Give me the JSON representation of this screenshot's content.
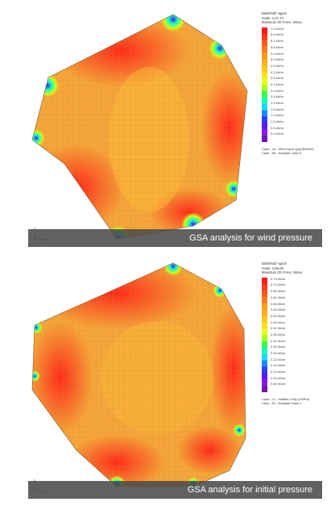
{
  "panels": [
    {
      "caption": "GSA analysis for wind pressure",
      "legend": {
        "title": "Bielsehild *ugsa*",
        "scale": "Scale: 1:07.70",
        "quantity": "Maximum 2D Force, Nmax",
        "ticks": [
          "7.0 kN/m",
          "6.6 kN/m",
          "6.2 kN/m",
          "5.8 kN/m",
          "5.4 kN/m",
          "5.0 kN/m",
          "4.6 kN/m",
          "4.2 kN/m",
          "3.8 kN/m",
          "3.4 kN/m",
          "3.0 kN/m",
          "2.6 kN/m",
          "2.2 kN/m",
          "1.8 kN/m",
          "1.4 kN/m",
          "1.0 kN/m",
          "0.6 kN/m",
          "0.0 kN/m"
        ],
        "case_line1": "Case : L6 : Wind sqcm (pc)(3kN/m2)",
        "case_line2": "Case : A6 : Analysis Case 6"
      }
    },
    {
      "caption": "GSA analysis for initial pressure",
      "legend": {
        "title": "Bielsehild *ugsa*",
        "scale": "Scale: 1:58.06",
        "quantity": "Maximum 2D Force, Nmax",
        "ticks": [
          "0.74 kN/m",
          "0.70 kN/m",
          "0.66 kN/m",
          "0.62 kN/m",
          "0.58 kN/m",
          "0.54 kN/m",
          "0.50 kN/m",
          "0.46 kN/m",
          "0.42 kN/m",
          "0.38 kN/m",
          "0.34 kN/m",
          "0.30 kN/m",
          "0.26 kN/m",
          "0.22 kN/m",
          "0.18 kN/m",
          "0.14 kN/m",
          "0.10 kN/m",
          "0.06 kN/m"
        ],
        "case_line1": "Case : L1 : Inflation Only (200Pa)",
        "case_line2": "Case : A1 : Analysis Case 1"
      }
    }
  ],
  "colors": {
    "scale": [
      "#ff1a1a",
      "#ff3a1a",
      "#ff5a1a",
      "#ff7a1a",
      "#ff9a1a",
      "#ffb01a",
      "#ffc81a",
      "#ffe01a",
      "#e8ff1a",
      "#a8ff1a",
      "#38ff4a",
      "#1affb0",
      "#1ad8ff",
      "#1a8cff",
      "#2a40ff",
      "#5a1aff",
      "#8a1ae0",
      "#6a18b0"
    ],
    "mesh_base": "#f5a53a",
    "mesh_line": "#c98a2e",
    "caption_bg": "#4b4b4b"
  }
}
